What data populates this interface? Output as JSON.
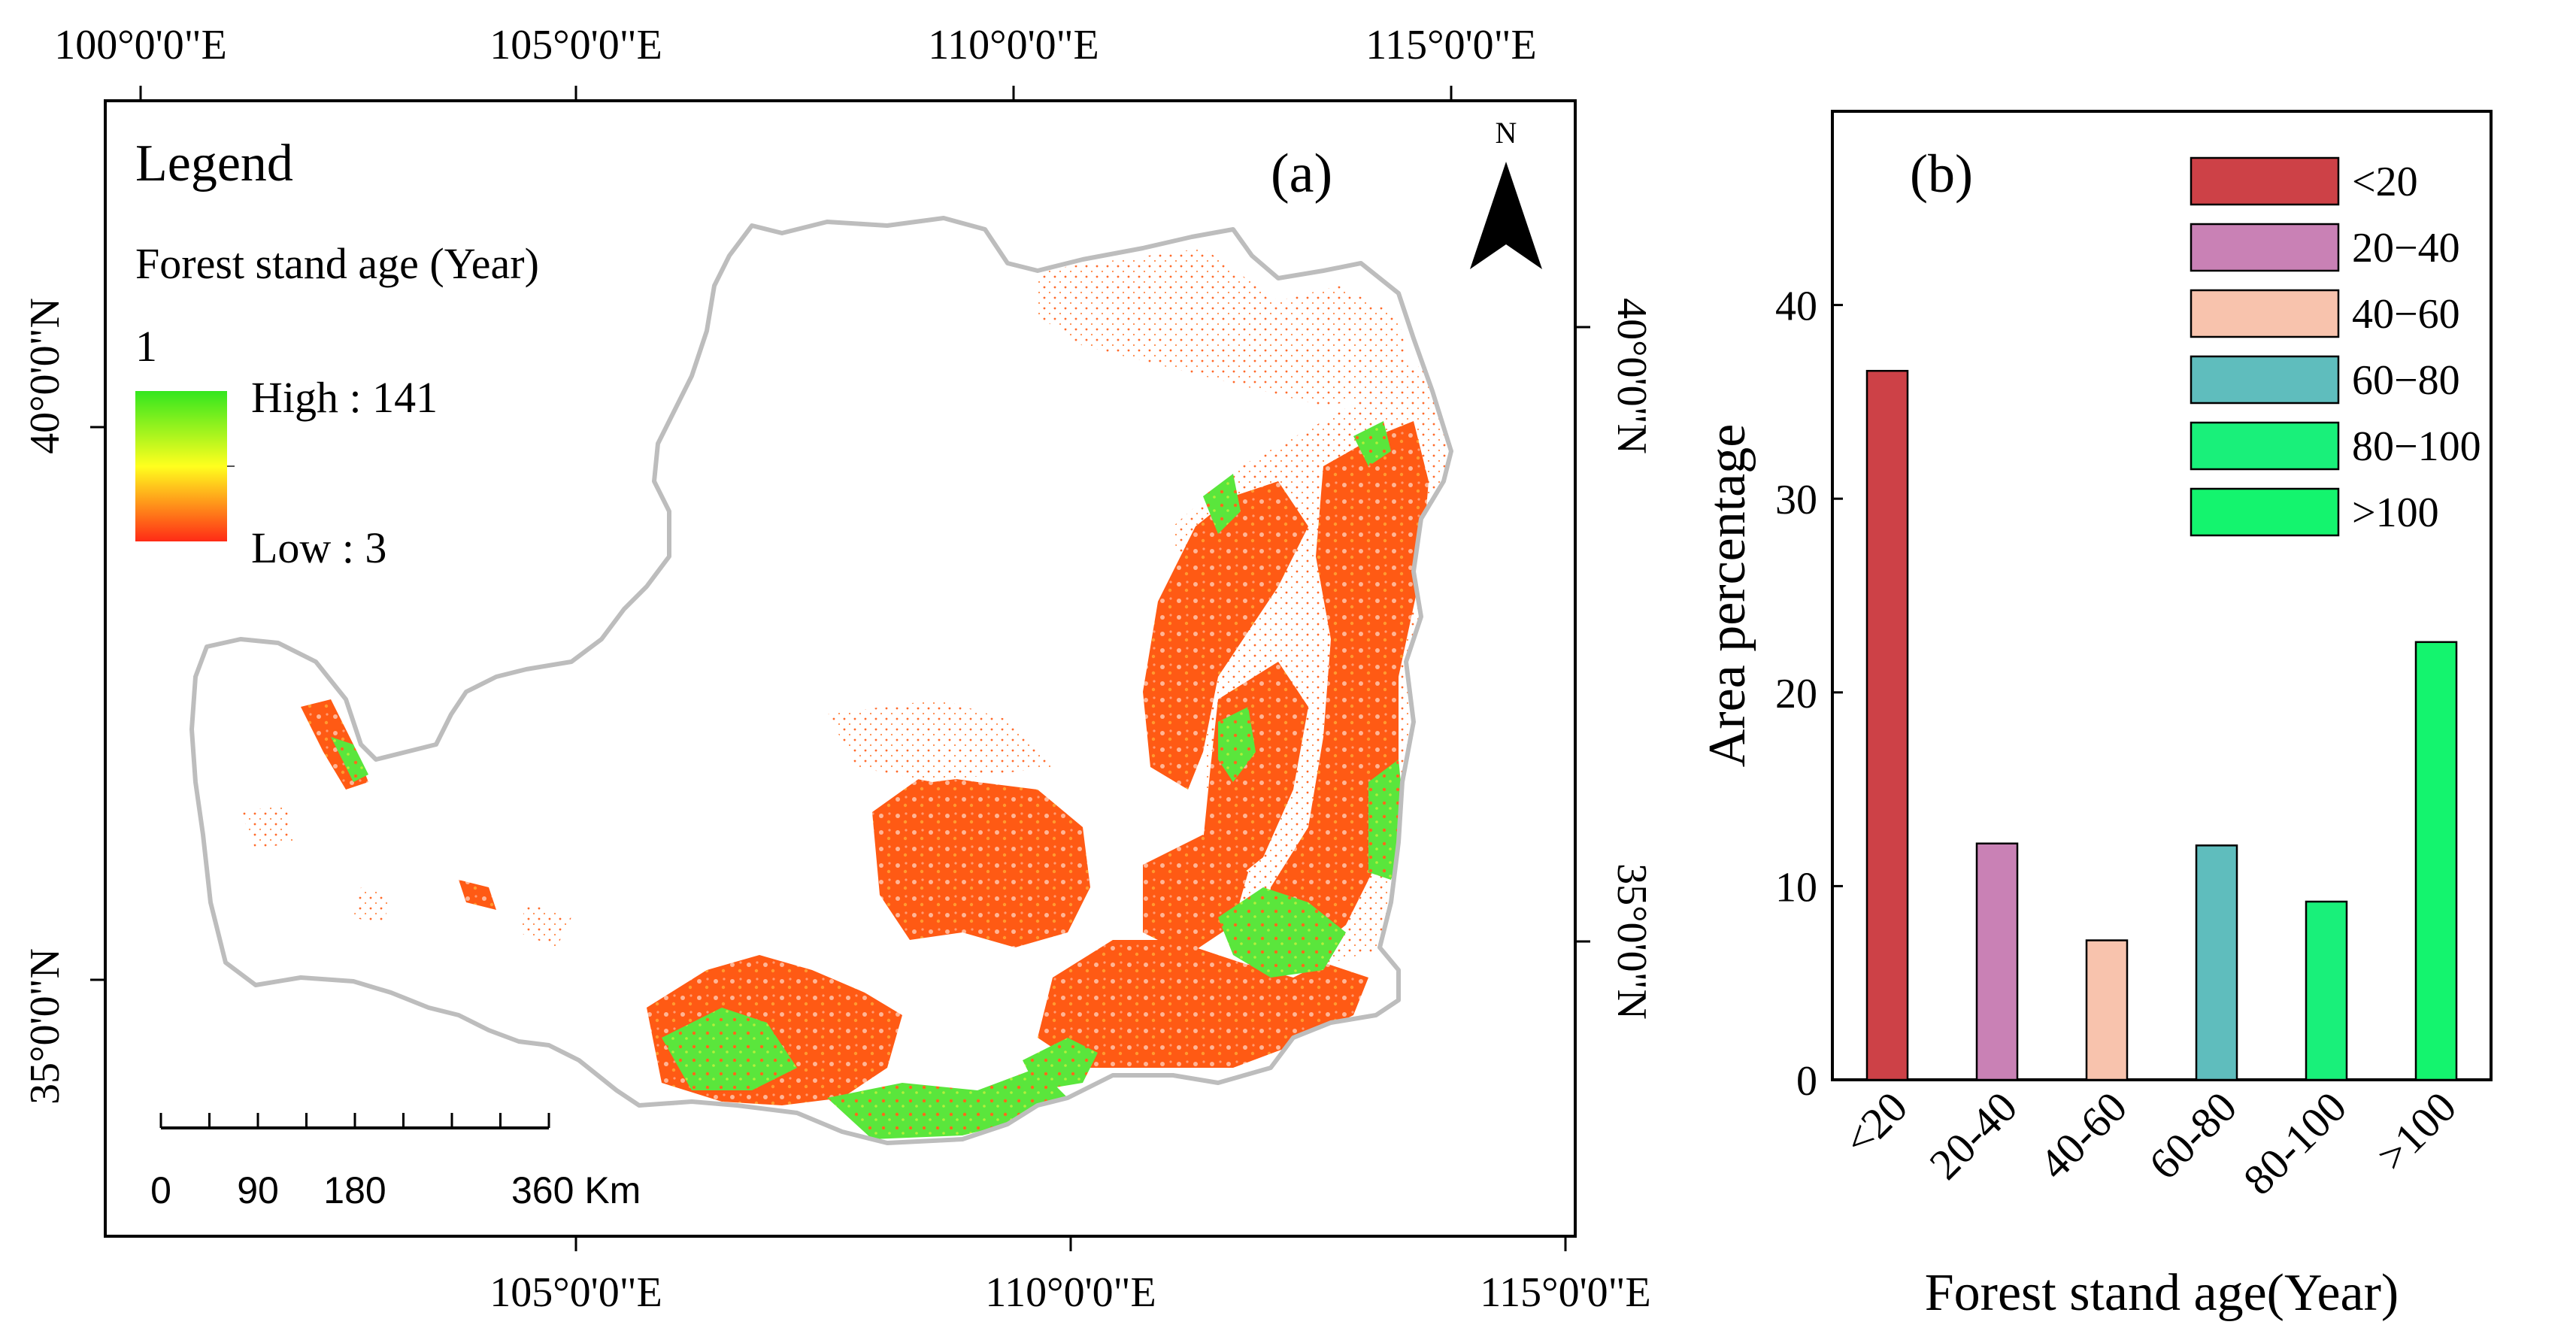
{
  "colors": {
    "frame": "#000000",
    "outline": "#bdbdbd",
    "ramp_high": "#33e61e",
    "ramp_mid": "#ffff1e",
    "ramp_low": "#ff2a16",
    "forest_orange": "#ff5a14",
    "forest_green": "#5ae63c"
  },
  "map": {
    "panel_label": "(a)",
    "lon_ticks_top": [
      "100°0'0\"E",
      "105°0'0\"E",
      "110°0'0\"E",
      "115°0'0\"E"
    ],
    "lon_ticks_bottom": [
      "105°0'0\"E",
      "110°0'0\"E",
      "115°0'0\"E"
    ],
    "lat_ticks_left": [
      "40°0'0\"N",
      "35°0'0\"N"
    ],
    "lat_ticks_right": [
      "40°0'0\"N",
      "35°0'0\"N"
    ],
    "north_label": "N",
    "north_icon": "north-arrow-icon",
    "legend": {
      "title": "Legend",
      "subtitle": "Forest stand age (Year)",
      "index": "1",
      "high_label": "High : 141",
      "low_label": "Low : 3"
    },
    "scale_bar": {
      "labels": [
        "0",
        "90",
        "180",
        "360 Km"
      ],
      "values_km": [
        0,
        90,
        180,
        360
      ]
    }
  },
  "chart_data": {
    "type": "bar",
    "panel_label": "(b)",
    "categories": [
      "<20",
      "20-40",
      "40-60",
      "60-80",
      "80-100",
      ">100"
    ],
    "values": [
      36.6,
      12.2,
      7.2,
      12.1,
      9.2,
      22.6
    ],
    "colors": [
      "#cd4147",
      "#c981b5",
      "#f8c3ad",
      "#5fbdbd",
      "#19f07a",
      "#14f46e"
    ],
    "legend_entries": [
      "<20",
      "20−40",
      "40−60",
      "60−80",
      "80−100",
      ">100"
    ],
    "legend_position": "top-right",
    "xlabel": "Forest stand age(Year)",
    "ylabel": "Area percentage",
    "yticks": [
      0,
      10,
      20,
      30,
      40
    ],
    "ylim": [
      0,
      50
    ],
    "grid": false
  }
}
